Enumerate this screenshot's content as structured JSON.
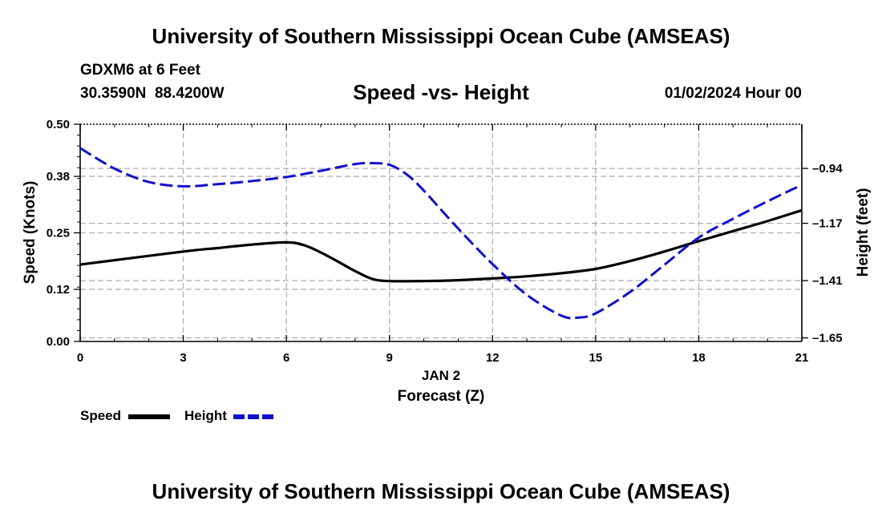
{
  "header": {
    "main_title": "University of Southern Mississippi Ocean Cube (AMSEAS)",
    "station": "GDXM6 at 6 Feet",
    "coordinates": "30.3590N  88.4200W",
    "subtitle": "Speed -vs- Height",
    "datetime": "01/02/2024 Hour 00"
  },
  "footer": {
    "title": "University of Southern Mississippi Ocean Cube (AMSEAS)"
  },
  "legend": {
    "speed_label": "Speed",
    "height_label": "Height"
  },
  "colors": {
    "speed": "#000000",
    "height": "#1010cc",
    "grid": "#b0b0b0"
  },
  "chart_data": {
    "type": "line",
    "title": "Speed -vs- Height",
    "xlabel_date": "JAN 2",
    "xlabel": "Forecast (Z)",
    "ylabel_left": "Speed (Knots)",
    "ylabel_right": "Height (feet)",
    "xlim": [
      0,
      21
    ],
    "ylim_left": [
      0,
      0.5
    ],
    "ylim_right": [
      -1.665,
      -0.755
    ],
    "x_ticks": [
      0,
      3,
      6,
      9,
      12,
      15,
      18,
      21
    ],
    "x_tick_labels": [
      "0",
      "3",
      "6",
      "9",
      "12",
      "15",
      "18",
      "21"
    ],
    "y_left_ticks": [
      0.0,
      0.12,
      0.25,
      0.38,
      0.5
    ],
    "y_left_tick_labels": [
      "0.00",
      "0.12",
      "0.25",
      "0.38",
      "0.50"
    ],
    "y_right_ticks": [
      -1.65,
      -1.41,
      -1.17,
      -0.94
    ],
    "y_right_tick_labels": [
      "–1.65",
      "–1.41",
      "–1.17",
      "–0.94"
    ],
    "grid": true,
    "series": [
      {
        "name": "Speed",
        "axis": "left",
        "style": "solid",
        "x": [
          0,
          3,
          4,
          5,
          6,
          6.5,
          7,
          7.5,
          8,
          8.5,
          9,
          10,
          11,
          12,
          13,
          14,
          15,
          16,
          17,
          18,
          19,
          20,
          21
        ],
        "values": [
          0.177,
          0.207,
          0.215,
          0.223,
          0.228,
          0.222,
          0.205,
          0.184,
          0.162,
          0.144,
          0.139,
          0.139,
          0.141,
          0.145,
          0.15,
          0.157,
          0.167,
          0.185,
          0.207,
          0.231,
          0.254,
          0.277,
          0.302
        ]
      },
      {
        "name": "Height",
        "axis": "right",
        "style": "dashed",
        "x": [
          0,
          1,
          2,
          3,
          4,
          5,
          6,
          7,
          8,
          8.5,
          9,
          9.5,
          10,
          11,
          12,
          13,
          14,
          14.5,
          15,
          16,
          17,
          18,
          19,
          20,
          21
        ],
        "values": [
          -0.855,
          -0.941,
          -0.997,
          -1.015,
          -1.006,
          -0.993,
          -0.976,
          -0.95,
          -0.922,
          -0.918,
          -0.925,
          -0.965,
          -1.033,
          -1.192,
          -1.341,
          -1.47,
          -1.557,
          -1.565,
          -1.547,
          -1.458,
          -1.344,
          -1.23,
          -1.151,
          -1.078,
          -1.009
        ]
      }
    ]
  }
}
